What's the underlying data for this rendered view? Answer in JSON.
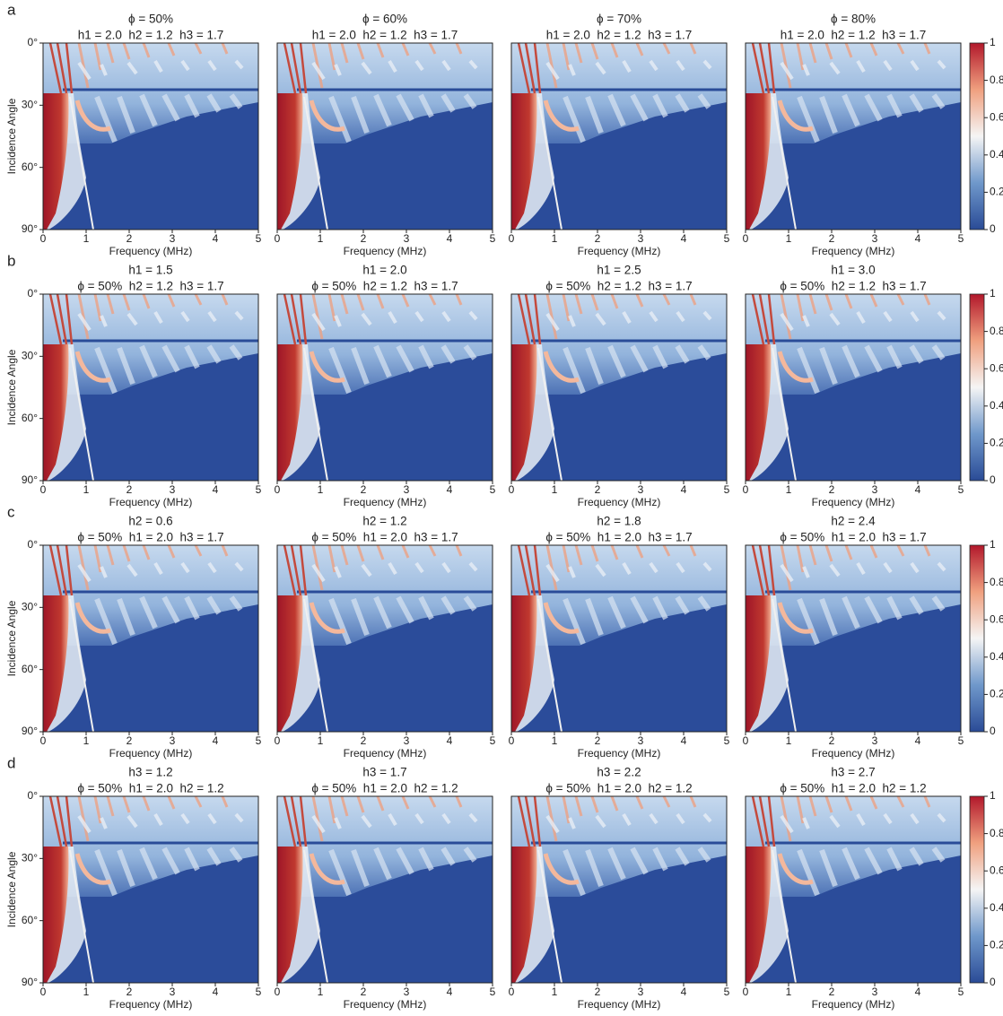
{
  "chart_data": [
    {
      "type": "heatmap",
      "panel_label": "a",
      "title": "ϕ = 50%",
      "subtitle": "h1 = 2.0  h2 = 1.2  h3 = 1.7",
      "xlabel": "Frequency (MHz)",
      "ylabel": "Incidence Angle",
      "xlim": [
        0,
        5
      ],
      "xticks": [
        0,
        1,
        2,
        3,
        4,
        5
      ],
      "ylim": [
        90,
        0
      ],
      "yticks": [
        {
          "value": 0,
          "label": "0°"
        },
        {
          "value": 30,
          "label": "30°"
        },
        {
          "value": 60,
          "label": "60°"
        },
        {
          "value": 90,
          "label": "90°"
        }
      ]
    },
    {
      "type": "heatmap",
      "title": "ϕ = 60%",
      "subtitle": "h1 = 2.0  h2 = 1.2  h3 = 1.7",
      "xlabel": "Frequency (MHz)",
      "xlim": [
        0,
        5
      ],
      "xticks": [
        0,
        1,
        2,
        3,
        4,
        5
      ],
      "ylim": [
        90,
        0
      ]
    },
    {
      "type": "heatmap",
      "title": "ϕ = 70%",
      "subtitle": "h1 = 2.0  h2 = 1.2  h3 = 1.7",
      "xlabel": "Frequency (MHz)",
      "xlim": [
        0,
        5
      ],
      "xticks": [
        0,
        1,
        2,
        3,
        4,
        5
      ],
      "ylim": [
        90,
        0
      ]
    },
    {
      "type": "heatmap",
      "title": "ϕ = 80%",
      "subtitle": "h1 = 2.0  h2 = 1.2  h3 = 1.7",
      "xlabel": "Frequency (MHz)",
      "xlim": [
        0,
        5
      ],
      "xticks": [
        0,
        1,
        2,
        3,
        4,
        5
      ],
      "ylim": [
        90,
        0
      ],
      "colorbar": {
        "lim": [
          0,
          1
        ],
        "ticks": [
          0,
          0.2,
          0.4,
          0.6,
          0.8,
          1
        ],
        "colors": [
          "#2a4b96",
          "#6f98cb",
          "#f5f5f5",
          "#f0a07f",
          "#b2182b"
        ]
      }
    },
    {
      "type": "heatmap",
      "panel_label": "b",
      "title": "h1 = 1.5",
      "subtitle": "ϕ = 50%  h2 = 1.2  h3 = 1.7",
      "xlabel": "Frequency (MHz)",
      "ylabel": "Incidence Angle",
      "xlim": [
        0,
        5
      ],
      "xticks": [
        0,
        1,
        2,
        3,
        4,
        5
      ],
      "ylim": [
        90,
        0
      ],
      "yticks": [
        {
          "value": 0,
          "label": "0°"
        },
        {
          "value": 30,
          "label": "30°"
        },
        {
          "value": 60,
          "label": "60°"
        },
        {
          "value": 90,
          "label": "90°"
        }
      ]
    },
    {
      "type": "heatmap",
      "title": "h1 = 2.0",
      "subtitle": "ϕ = 50%  h2 = 1.2  h3 = 1.7",
      "xlabel": "Frequency (MHz)",
      "xlim": [
        0,
        5
      ],
      "xticks": [
        0,
        1,
        2,
        3,
        4,
        5
      ],
      "ylim": [
        90,
        0
      ]
    },
    {
      "type": "heatmap",
      "title": "h1 = 2.5",
      "subtitle": "ϕ = 50%  h2 = 1.2  h3 = 1.7",
      "xlabel": "Frequency (MHz)",
      "xlim": [
        0,
        5
      ],
      "xticks": [
        0,
        1,
        2,
        3,
        4,
        5
      ],
      "ylim": [
        90,
        0
      ]
    },
    {
      "type": "heatmap",
      "title": "h1 = 3.0",
      "subtitle": "ϕ = 50%  h2 = 1.2  h3 = 1.7",
      "xlabel": "Frequency (MHz)",
      "xlim": [
        0,
        5
      ],
      "xticks": [
        0,
        1,
        2,
        3,
        4,
        5
      ],
      "ylim": [
        90,
        0
      ],
      "colorbar": {
        "lim": [
          0,
          1
        ],
        "ticks": [
          0,
          0.2,
          0.4,
          0.6,
          0.8,
          1
        ],
        "colors": [
          "#2a4b96",
          "#6f98cb",
          "#f5f5f5",
          "#f0a07f",
          "#b2182b"
        ]
      }
    },
    {
      "type": "heatmap",
      "panel_label": "c",
      "title": "h2 = 0.6",
      "subtitle": "ϕ = 50%  h1 = 2.0  h3 = 1.7",
      "xlabel": "Frequency (MHz)",
      "ylabel": "Incidence Angle",
      "xlim": [
        0,
        5
      ],
      "xticks": [
        0,
        1,
        2,
        3,
        4,
        5
      ],
      "ylim": [
        90,
        0
      ],
      "yticks": [
        {
          "value": 0,
          "label": "0°"
        },
        {
          "value": 30,
          "label": "30°"
        },
        {
          "value": 60,
          "label": "60°"
        },
        {
          "value": 90,
          "label": "90°"
        }
      ]
    },
    {
      "type": "heatmap",
      "title": "h2 = 1.2",
      "subtitle": "ϕ = 50%  h1 = 2.0  h3 = 1.7",
      "xlabel": "Frequency (MHz)",
      "xlim": [
        0,
        5
      ],
      "xticks": [
        0,
        1,
        2,
        3,
        4,
        5
      ],
      "ylim": [
        90,
        0
      ]
    },
    {
      "type": "heatmap",
      "title": "h2 = 1.8",
      "subtitle": "ϕ = 50%  h1 = 2.0  h3 = 1.7",
      "xlabel": "Frequency (MHz)",
      "xlim": [
        0,
        5
      ],
      "xticks": [
        0,
        1,
        2,
        3,
        4,
        5
      ],
      "ylim": [
        90,
        0
      ]
    },
    {
      "type": "heatmap",
      "title": "h2 = 2.4",
      "subtitle": "ϕ = 50%  h1 = 2.0  h3 = 1.7",
      "xlabel": "Frequency (MHz)",
      "xlim": [
        0,
        5
      ],
      "xticks": [
        0,
        1,
        2,
        3,
        4,
        5
      ],
      "ylim": [
        90,
        0
      ],
      "colorbar": {
        "lim": [
          0,
          1
        ],
        "ticks": [
          0,
          0.2,
          0.4,
          0.6,
          0.8,
          1
        ],
        "colors": [
          "#2a4b96",
          "#6f98cb",
          "#f5f5f5",
          "#f0a07f",
          "#b2182b"
        ]
      }
    },
    {
      "type": "heatmap",
      "panel_label": "d",
      "title": "h3 = 1.2",
      "subtitle": "ϕ = 50%  h1 = 2.0  h2 = 1.2",
      "xlabel": "Frequency (MHz)",
      "ylabel": "Incidence Angle",
      "xlim": [
        0,
        5
      ],
      "xticks": [
        0,
        1,
        2,
        3,
        4,
        5
      ],
      "ylim": [
        90,
        0
      ],
      "yticks": [
        {
          "value": 0,
          "label": "0°"
        },
        {
          "value": 30,
          "label": "30°"
        },
        {
          "value": 60,
          "label": "60°"
        },
        {
          "value": 90,
          "label": "90°"
        }
      ]
    },
    {
      "type": "heatmap",
      "title": "h3 = 1.7",
      "subtitle": "ϕ = 50%  h1 = 2.0  h2 = 1.2",
      "xlabel": "Frequency (MHz)",
      "xlim": [
        0,
        5
      ],
      "xticks": [
        0,
        1,
        2,
        3,
        4,
        5
      ],
      "ylim": [
        90,
        0
      ]
    },
    {
      "type": "heatmap",
      "title": "h3 = 2.2",
      "subtitle": "ϕ = 50%  h1 = 2.0  h2 = 1.2",
      "xlabel": "Frequency (MHz)",
      "xlim": [
        0,
        5
      ],
      "xticks": [
        0,
        1,
        2,
        3,
        4,
        5
      ],
      "ylim": [
        90,
        0
      ]
    },
    {
      "type": "heatmap",
      "title": "h3 = 2.7",
      "subtitle": "ϕ = 50%  h1 = 2.0  h2 = 1.2",
      "xlabel": "Frequency (MHz)",
      "xlim": [
        0,
        5
      ],
      "xticks": [
        0,
        1,
        2,
        3,
        4,
        5
      ],
      "ylim": [
        90,
        0
      ],
      "colorbar": {
        "lim": [
          0,
          1
        ],
        "ticks": [
          0,
          0.2,
          0.4,
          0.6,
          0.8,
          1
        ],
        "colors": [
          "#2a4b96",
          "#6f98cb",
          "#f5f5f5",
          "#f0a07f",
          "#b2182b"
        ]
      }
    }
  ]
}
